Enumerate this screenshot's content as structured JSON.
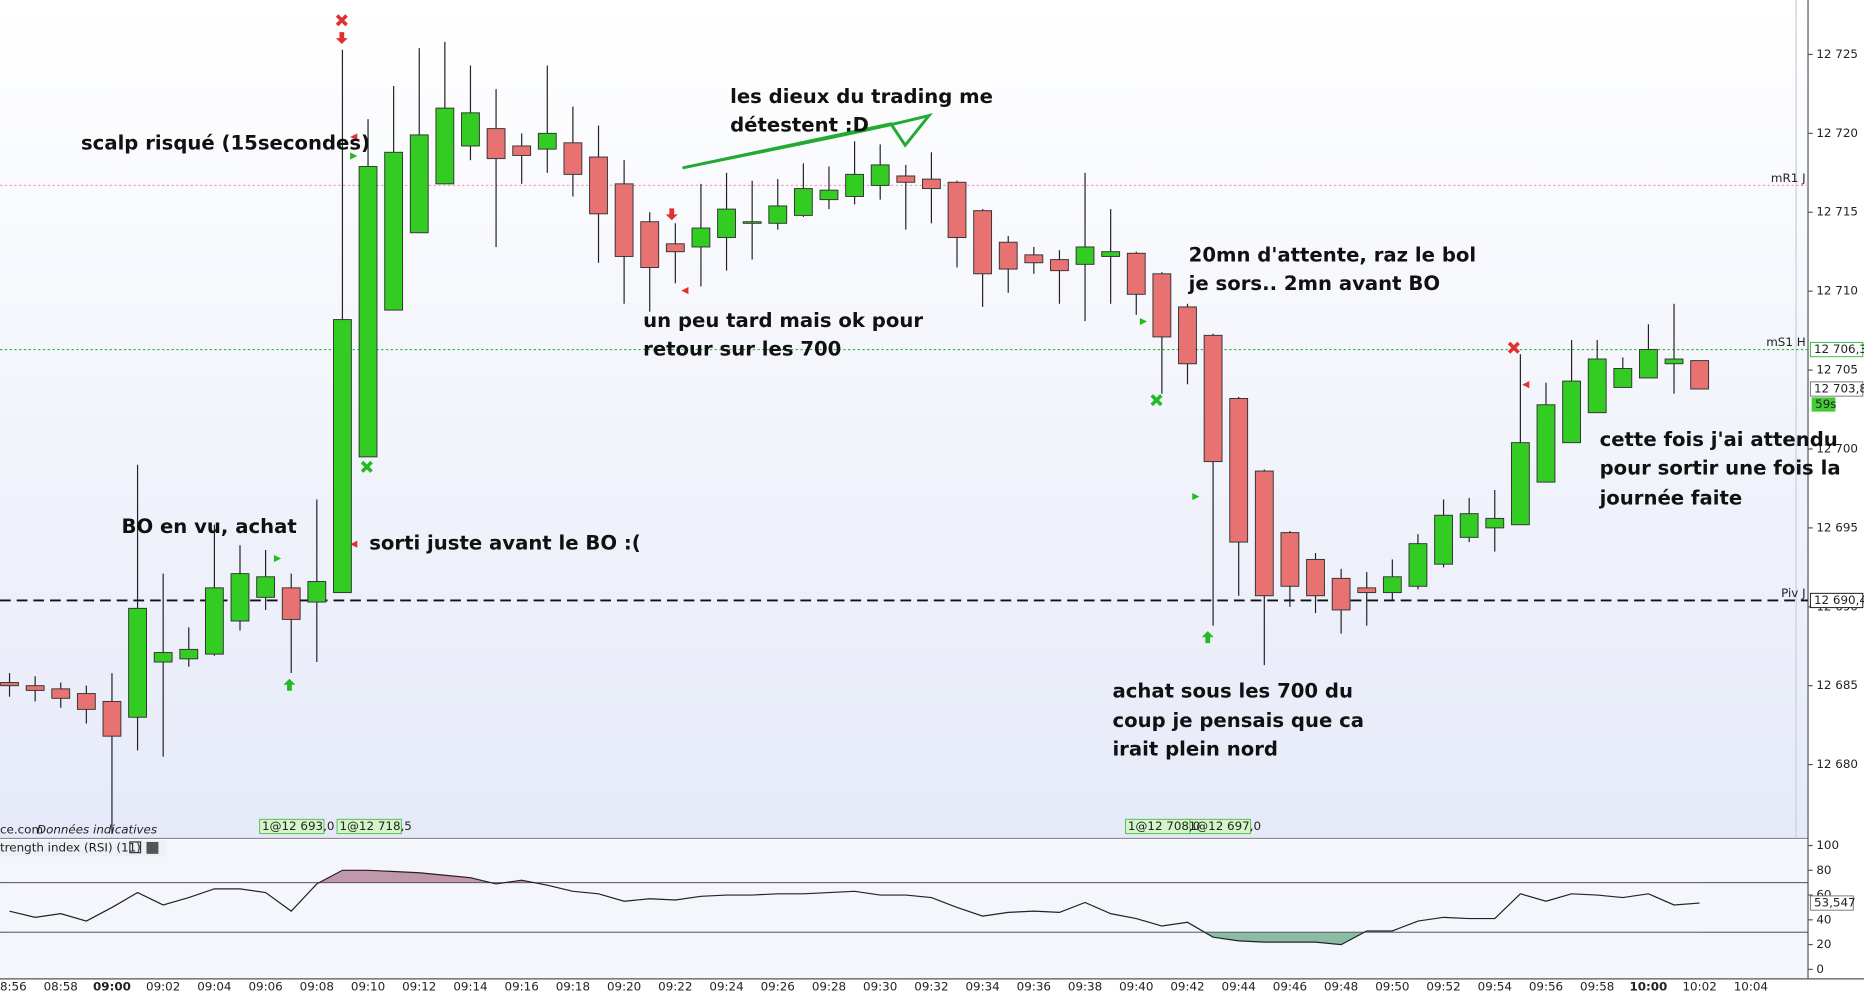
{
  "chart_data": {
    "type": "candlestick",
    "categories": [
      "08:56",
      null,
      "08:58",
      null,
      "09:00",
      null,
      "09:02",
      null,
      "09:04",
      null,
      "09:06",
      null,
      "09:08",
      null,
      "09:10",
      null,
      "09:12",
      null,
      "09:14",
      null,
      "09:16",
      null,
      "09:18",
      null,
      "09:20",
      null,
      "09:22",
      null,
      "09:24",
      null,
      "09:26",
      null,
      "09:28",
      null,
      "09:30",
      null,
      "09:32",
      null,
      "09:34",
      null,
      "09:36",
      null,
      "09:38",
      null,
      "09:40",
      null,
      "09:42",
      null,
      "09:44",
      null,
      "09:46",
      null,
      "09:48",
      null,
      "09:50",
      null,
      "09:52",
      null,
      "09:54",
      null,
      "09:56",
      null,
      "09:58",
      null,
      "10:00",
      null,
      "10:02",
      null,
      "10:04"
    ],
    "open": [
      12685.2,
      12685.0,
      12684.8,
      12684.5,
      12684.0,
      12683.0,
      12686.5,
      12686.7,
      12687.0,
      12689.1,
      12690.6,
      12691.2,
      12690.3,
      12690.9,
      12699.5,
      12708.8,
      12713.7,
      12716.8,
      12719.2,
      12720.3,
      12719.2,
      12719.0,
      12719.4,
      12718.5,
      12716.8,
      12714.4,
      12713.0,
      12712.8,
      12713.4,
      12714.3,
      12714.3,
      12714.8,
      12715.8,
      12716.0,
      12716.7,
      12717.3,
      12717.1,
      12716.9,
      12715.1,
      12713.1,
      12712.3,
      12712.0,
      12711.7,
      12712.2,
      12712.4,
      12711.1,
      12709.0,
      12707.2,
      12703.2,
      12698.6,
      12694.7,
      12693.0,
      12691.8,
      12691.2,
      12690.9,
      12691.3,
      12692.7,
      12694.4,
      12695.0,
      12695.2,
      12697.9,
      12700.4,
      12702.3,
      12703.9,
      12704.5,
      12705.4,
      12705.6,
      null,
      null
    ],
    "high": [
      12685.8,
      12685.6,
      12685.2,
      12685.0,
      12685.8,
      12699.0,
      12692.1,
      12688.7,
      12695.2,
      12693.9,
      12693.6,
      12692.1,
      12696.8,
      12725.3,
      12720.9,
      12723.0,
      12725.4,
      12725.8,
      12724.3,
      12722.8,
      12720.0,
      12724.3,
      12721.7,
      12720.5,
      12718.3,
      12715.0,
      12714.3,
      12716.8,
      12717.5,
      12717.0,
      12717.1,
      12718.1,
      12717.9,
      12719.5,
      12719.3,
      12718.0,
      12718.8,
      12717.0,
      12715.2,
      12713.5,
      12712.8,
      12712.6,
      12717.5,
      12715.2,
      12712.5,
      12711.2,
      12709.2,
      12707.3,
      12703.3,
      12698.7,
      12694.8,
      12693.4,
      12692.4,
      12692.2,
      12693.0,
      12694.6,
      12696.8,
      12696.9,
      12697.4,
      12706.0,
      12704.2,
      12706.9,
      12706.9,
      12705.8,
      12707.9,
      12709.2,
      12705.6,
      null,
      null
    ],
    "low": [
      12684.3,
      12684.0,
      12683.6,
      12682.6,
      12675.6,
      12680.9,
      12680.5,
      12686.2,
      12686.9,
      12688.5,
      12689.8,
      12685.8,
      12686.5,
      12690.9,
      12699.5,
      12708.8,
      12713.7,
      12716.8,
      12718.3,
      12712.8,
      12716.8,
      12717.5,
      12716.0,
      12711.8,
      12709.2,
      12708.7,
      12710.5,
      12710.3,
      12711.3,
      12712.0,
      12713.9,
      12714.7,
      12715.2,
      12715.5,
      12715.8,
      12713.9,
      12714.3,
      12711.5,
      12709.0,
      12709.9,
      12711.1,
      12709.2,
      12708.1,
      12709.2,
      12708.5,
      12703.5,
      12704.1,
      12688.8,
      12690.7,
      12686.3,
      12690.0,
      12689.6,
      12688.3,
      12688.8,
      12690.4,
      12691.1,
      12692.5,
      12694.1,
      12693.5,
      12695.2,
      12697.9,
      12700.4,
      12702.3,
      12703.9,
      12704.5,
      12703.5,
      12703.8,
      null,
      null
    ],
    "close": [
      12685.0,
      12684.7,
      12684.2,
      12683.5,
      12681.8,
      12689.9,
      12687.1,
      12687.3,
      12691.2,
      12692.1,
      12691.9,
      12689.2,
      12691.6,
      12708.2,
      12717.9,
      12718.8,
      12719.9,
      12721.6,
      12721.3,
      12718.4,
      12718.6,
      12720.0,
      12717.4,
      12714.9,
      12712.2,
      12711.5,
      12712.5,
      12714.0,
      12715.2,
      12714.4,
      12715.4,
      12716.5,
      12716.4,
      12717.4,
      12718.0,
      12716.9,
      12716.5,
      12713.4,
      12711.1,
      12711.4,
      12711.8,
      12711.3,
      12712.8,
      12712.5,
      12709.8,
      12707.1,
      12705.4,
      12699.2,
      12694.1,
      12690.7,
      12691.3,
      12690.7,
      12689.8,
      12690.9,
      12691.9,
      12694.0,
      12695.8,
      12695.9,
      12695.6,
      12700.4,
      12702.8,
      12704.3,
      12705.7,
      12705.1,
      12706.3,
      12705.7,
      12703.8,
      null,
      null
    ],
    "up_color": "#33cc22",
    "down_color": "#e87272",
    "ylim": [
      12675.4,
      12728.45
    ],
    "yticks": [
      {
        "value": 12680,
        "label": "12 680"
      },
      {
        "value": 12685,
        "label": "12 685"
      },
      {
        "value": 12690,
        "label": "12 690"
      },
      {
        "value": 12695,
        "label": "12 695"
      },
      {
        "value": 12700,
        "label": "12 700"
      },
      {
        "value": 12705,
        "label": "12 705"
      },
      {
        "value": 12710,
        "label": "12 710"
      },
      {
        "value": 12715,
        "label": "12 715"
      },
      {
        "value": 12720,
        "label": "12 720"
      },
      {
        "value": 12725,
        "label": "12 725"
      }
    ],
    "levels": [
      {
        "name": "mR1 J",
        "value": 12716.7,
        "color": "#f0a0b0"
      },
      {
        "name": "mS1 H",
        "value": 12706.3,
        "label": "12 706,3",
        "color": "#33bb33"
      },
      {
        "name": "Piv J",
        "value": 12690.4,
        "label": "12 690,4",
        "color": "#111111"
      }
    ],
    "last_price": {
      "value": 12703.8,
      "label": "12 703,8",
      "timer": "59s"
    },
    "orders": [
      "1@12 693,0",
      "1@12 718,5",
      "1@12 708,0",
      "1@12 697,0"
    ],
    "source": "ce.com",
    "source_note": "Données indicatives",
    "annotations": [
      "scalp risqué (15secondes)",
      "les dieux du trading me",
      "détestent :D",
      "un peu tard mais ok pour",
      "retour  sur les 700",
      "20mn d'attente, raz le bol",
      "je sors.. 2mn avant BO",
      "BO en vu, achat",
      "sorti juste avant le BO :(",
      "cette fois j'ai attendu",
      "pour sortir une fois la",
      "journée faite",
      "achat sous les 700 du",
      "coup je pensais que ca",
      "irait plein nord"
    ],
    "rsi": {
      "name": "trength index (RSI) (11)",
      "color": "#222222",
      "values": [
        47,
        42,
        45,
        39,
        50,
        62,
        52,
        58,
        65,
        65,
        62,
        47,
        69,
        80,
        80,
        79,
        78,
        76,
        74,
        69,
        72,
        68,
        63,
        61,
        55,
        57,
        56,
        59,
        60,
        60,
        61,
        61,
        62,
        63,
        60,
        60,
        58,
        50,
        43,
        46,
        47,
        46,
        54,
        45,
        41,
        35,
        38,
        26,
        23,
        22,
        22,
        22,
        20,
        31,
        31,
        39,
        42,
        41,
        41,
        61,
        55,
        61,
        60,
        58,
        61,
        52,
        53.547,
        null,
        null
      ],
      "last_label": "53,547",
      "ylim": [
        -7.7,
        104.8
      ],
      "yticks": [
        0,
        20,
        40,
        60,
        80,
        100
      ],
      "levels": [
        70,
        30
      ]
    }
  }
}
